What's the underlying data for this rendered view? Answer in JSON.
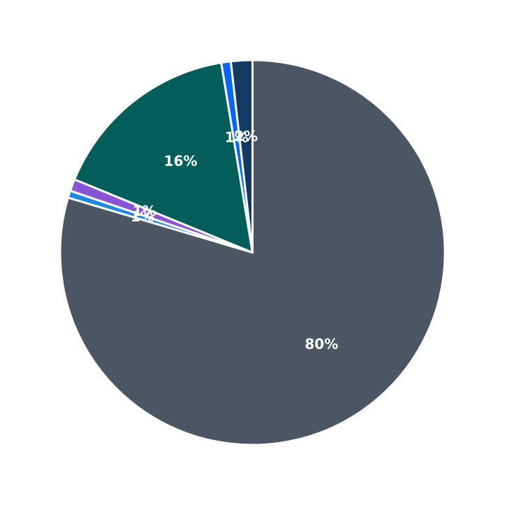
{
  "chart_data": {
    "type": "pie",
    "title": "",
    "start": "12 o'clock",
    "direction": "clockwise",
    "slices": [
      {
        "value": 79.6,
        "label": "80%",
        "color": "#4b5563"
      },
      {
        "value": 0.6,
        "label": "1%",
        "color": "#1e88e5"
      },
      {
        "value": 1.0,
        "label": "1%",
        "color": "#8855d4"
      },
      {
        "value": 16.2,
        "label": "16%",
        "color": "#035e5b"
      },
      {
        "value": 0.8,
        "label": "1%",
        "color": "#0a66f0"
      },
      {
        "value": 1.8,
        "label": "2%",
        "color": "#133a63"
      }
    ]
  }
}
